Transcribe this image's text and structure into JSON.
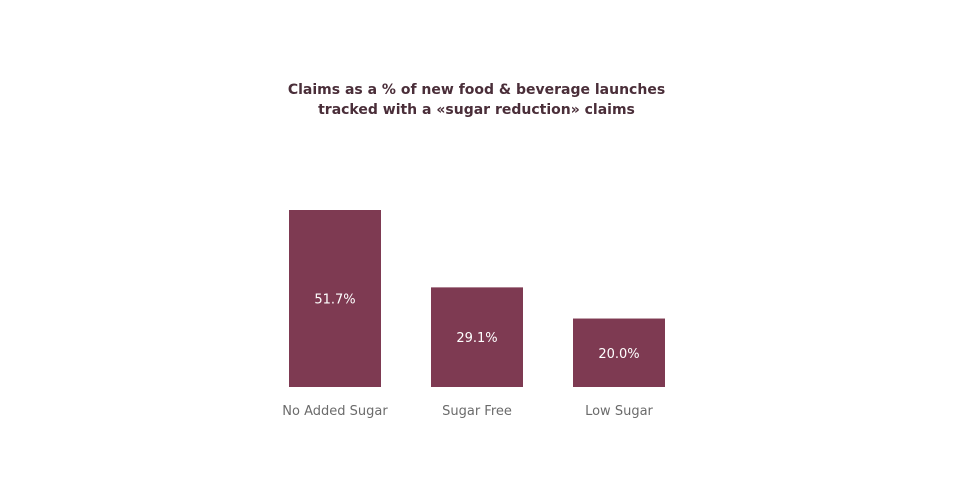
{
  "chart_data": {
    "type": "bar",
    "title_lines": [
      "Claims as a % of new food & beverage launches",
      "tracked with a «sugar reduction» claims"
    ],
    "categories": [
      "No Added Sugar",
      "Sugar Free",
      "Low Sugar"
    ],
    "values": [
      51.7,
      29.1,
      20.0
    ],
    "value_labels": [
      "51.7%",
      "29.1%",
      "20.0%"
    ],
    "xlabel": "",
    "ylabel": "",
    "ylim": [
      0,
      51.7
    ],
    "grid": false,
    "legend": "none",
    "bar_color": "#7e3a52",
    "value_label_color": "#ffffff",
    "category_label_color": "#6b6b6b",
    "title_color": "#4a2e39"
  }
}
